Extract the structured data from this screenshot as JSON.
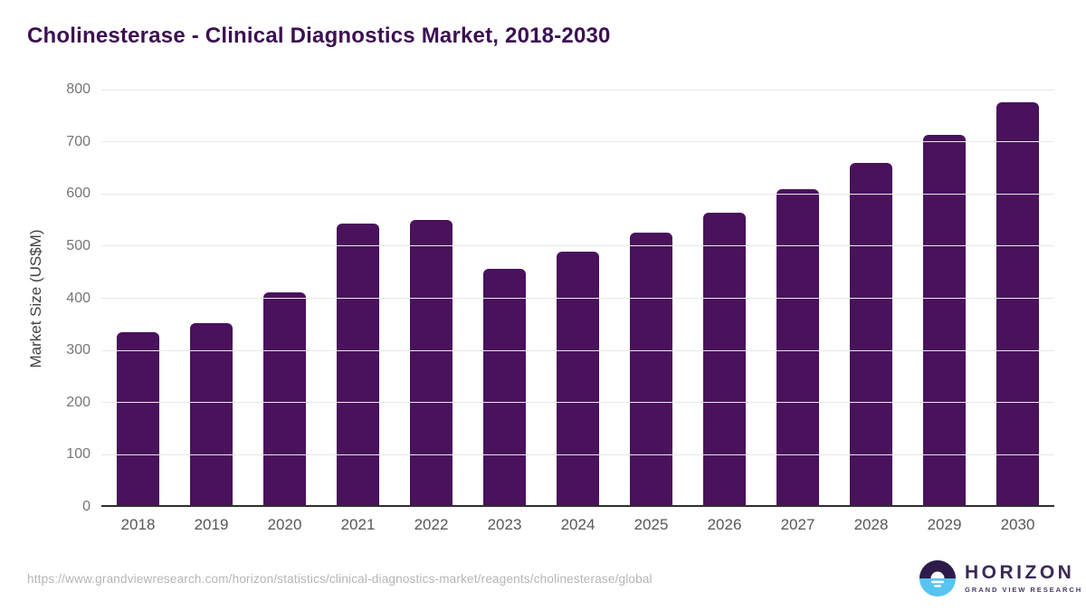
{
  "title": "Cholinesterase - Clinical Diagnostics Market, 2018-2030",
  "chart_data": {
    "type": "bar",
    "title": "Cholinesterase - Clinical Diagnostics Market, 2018-2030",
    "categories": [
      "2018",
      "2019",
      "2020",
      "2021",
      "2022",
      "2023",
      "2024",
      "2025",
      "2026",
      "2027",
      "2028",
      "2029",
      "2030"
    ],
    "values": [
      335,
      352,
      411,
      544,
      551,
      456,
      489,
      525,
      564,
      610,
      660,
      714,
      775
    ],
    "xlabel": "",
    "ylabel": "Market Size (US$M)",
    "ylim": [
      0,
      800
    ],
    "ytick_step": 100,
    "ytick_labels": [
      "0",
      "100",
      "200",
      "300",
      "400",
      "500",
      "600",
      "700",
      "800"
    ],
    "grid": true,
    "legend": "none",
    "bar_color": "#49125b"
  },
  "footer": {
    "source_url": "https://www.grandviewresearch.com/horizon/statistics/clinical-diagnostics-market/reagents/cholinesterase/global",
    "logo": {
      "name": "HORIZON",
      "subtitle": "GRAND VIEW RESEARCH",
      "icon": "sun-over-horizon-icon",
      "purple": "#2d1c49",
      "blue": "#57c4f2"
    }
  },
  "colors": {
    "title": "#3c1053",
    "bar": "#49125b",
    "gridline": "#e8e8e8",
    "axis_line": "#2f2f2f",
    "y_tick_text": "#767676",
    "x_tick_text": "#575757",
    "url_text": "#b5b5b5"
  }
}
